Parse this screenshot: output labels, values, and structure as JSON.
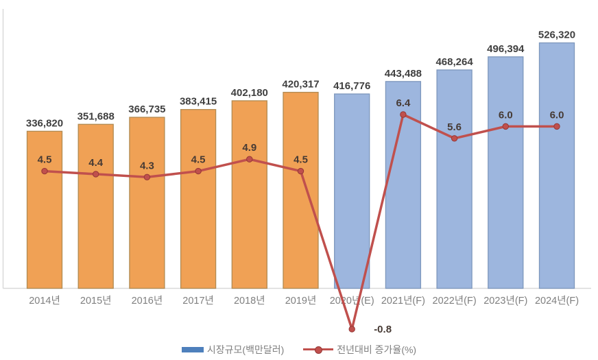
{
  "chart_data": {
    "type": "combo-bar-line",
    "categories": [
      "2014년",
      "2015년",
      "2016년",
      "2017년",
      "2018년",
      "2019년",
      "2020년(E)",
      "2021년(F)",
      "2022년(F)",
      "2023년(F)",
      "2024년(F)"
    ],
    "series": [
      {
        "name": "시장규모(백만달러)",
        "type": "bar",
        "values": [
          336820,
          351688,
          366735,
          383415,
          402180,
          420317,
          416776,
          443488,
          468264,
          496394,
          526320
        ],
        "labels": [
          "336,820",
          "351,688",
          "366,735",
          "383,415",
          "402,180",
          "420,317",
          "416,776",
          "443,488",
          "468,264",
          "496,394",
          "526,320"
        ],
        "point_styles": [
          "actual",
          "actual",
          "actual",
          "actual",
          "actual",
          "actual",
          "forecast",
          "forecast",
          "forecast",
          "forecast",
          "forecast"
        ],
        "colors": {
          "actual_fill": "#F0A155",
          "actual_border": "#B18A52",
          "forecast_fill": "#9DB6DE",
          "forecast_border": "#7D97BC",
          "legend_swatch": "#4E80BC"
        }
      },
      {
        "name": "전년대비 증가율(%)",
        "type": "line",
        "values": [
          4.5,
          4.4,
          4.3,
          4.5,
          4.9,
          4.5,
          -0.8,
          6.4,
          5.6,
          6.0,
          6.0
        ],
        "labels": [
          "4.5",
          "4.4",
          "4.3",
          "4.5",
          "4.9",
          "4.5",
          "-0.8",
          "6.4",
          "5.6",
          "6.0",
          "6.0"
        ],
        "color": "#C0504D",
        "marker_color": "#C0504D",
        "marker_border": "#953735"
      }
    ],
    "axes": {
      "gridlines": false,
      "x_axis_line": true,
      "y_axis_line": true,
      "left_value_range": [
        0,
        526320
      ],
      "right_value_range_hint": [
        -0.8,
        6.4
      ]
    },
    "legend": {
      "position": "bottom-center",
      "entries": [
        "시장규모(백만달러)",
        "전년대비 증가율(%)"
      ]
    }
  },
  "style": {
    "value_label_color": "#3F3F3F",
    "growth_label_color": "#463A34",
    "category_label_color": "#7F7F7F",
    "legend_label_color": "#7F7F7F",
    "axis_line_color": "#D9D9D9",
    "background": "#FFFFFF"
  }
}
